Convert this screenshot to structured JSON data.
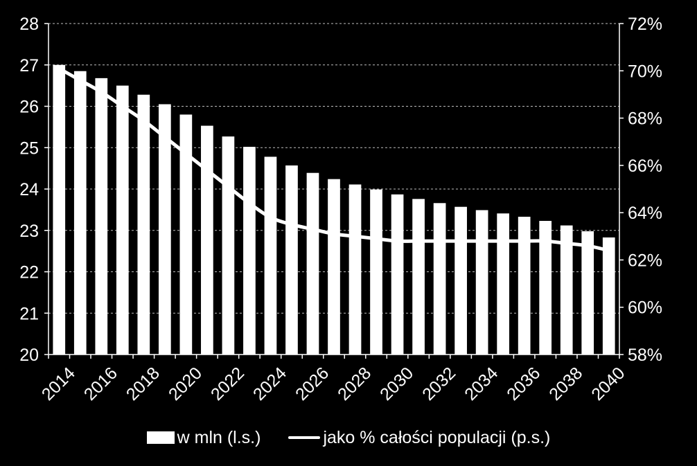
{
  "chart_data": {
    "type": "bar",
    "categories": [
      "2014",
      "2015",
      "2016",
      "2017",
      "2018",
      "2019",
      "2020",
      "2021",
      "2022",
      "2023",
      "2024",
      "2025",
      "2026",
      "2027",
      "2028",
      "2029",
      "2030",
      "2031",
      "2032",
      "2033",
      "2034",
      "2035",
      "2036",
      "2037",
      "2038",
      "2039",
      "2040"
    ],
    "x_tick_labels": [
      "2014",
      "2016",
      "2018",
      "2020",
      "2022",
      "2024",
      "2026",
      "2028",
      "2030",
      "2032",
      "2034",
      "2036",
      "2038",
      "2040"
    ],
    "series": [
      {
        "name": "w mln (l.s.)",
        "type": "bar",
        "axis": "left",
        "color": "#ffffff",
        "values": [
          27.0,
          26.85,
          26.68,
          26.5,
          26.28,
          26.05,
          25.8,
          25.53,
          25.27,
          25.02,
          24.78,
          24.57,
          24.39,
          24.24,
          24.11,
          23.99,
          23.87,
          23.76,
          23.66,
          23.57,
          23.49,
          23.41,
          23.33,
          23.23,
          23.12,
          22.98,
          22.83
        ]
      },
      {
        "name": "jako % całości populacji (p.s.)",
        "type": "line",
        "axis": "right",
        "color": "#ffffff",
        "values": [
          70.1,
          69.6,
          69.1,
          68.5,
          67.9,
          67.2,
          66.5,
          65.8,
          65.1,
          64.4,
          63.8,
          63.5,
          63.3,
          63.1,
          63.0,
          62.9,
          62.8,
          62.8,
          62.8,
          62.8,
          62.8,
          62.8,
          62.8,
          62.8,
          62.7,
          62.6,
          62.4
        ]
      }
    ],
    "y_left": {
      "ylim": [
        20,
        28
      ],
      "ticks": [
        "20",
        "21",
        "22",
        "23",
        "24",
        "25",
        "26",
        "27",
        "28"
      ]
    },
    "y_right": {
      "ylim": [
        58,
        72
      ],
      "ticks": [
        "58%",
        "60%",
        "62%",
        "64%",
        "66%",
        "68%",
        "70%",
        "72%"
      ]
    },
    "grid": "horizontal-dashed",
    "legend_position": "bottom",
    "background": "#000000"
  }
}
